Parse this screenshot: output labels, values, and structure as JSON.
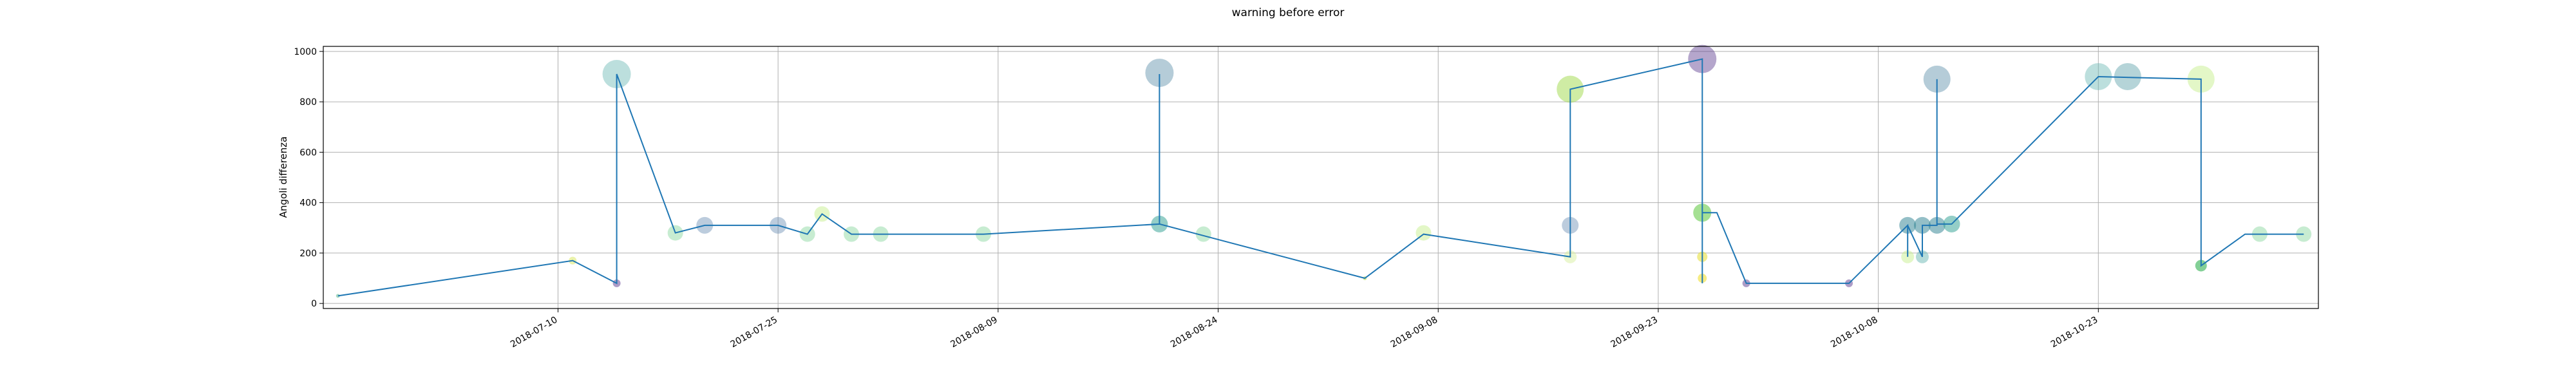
{
  "chart_data": {
    "type": "line",
    "title": "warning before error",
    "xlabel": "",
    "ylabel": "Angoli differenza",
    "ylim": [
      -20,
      1020
    ],
    "xlim": [
      "2018-06-24",
      "2018-11-07"
    ],
    "grid": true,
    "x_tick_labels": [
      "2018-07-10",
      "2018-07-25",
      "2018-08-09",
      "2018-08-24",
      "2018-09-08",
      "2018-09-23",
      "2018-10-08",
      "2018-10-23"
    ],
    "y_ticks": [
      0,
      200,
      400,
      600,
      800,
      1000
    ],
    "series": [
      {
        "x": [
          "2018-06-25",
          "2018-07-11",
          "2018-07-14",
          "2018-07-14",
          "2018-07-18",
          "2018-07-20",
          "2018-07-25",
          "2018-07-27",
          "2018-07-28",
          "2018-07-30",
          "2018-08-08",
          "2018-08-20",
          "2018-08-20",
          "2018-08-20",
          "2018-09-03",
          "2018-09-07",
          "2018-09-17",
          "2018-09-17",
          "2018-09-26",
          "2018-09-26",
          "2018-09-26",
          "2018-09-26",
          "2018-09-26",
          "2018-09-26",
          "2018-09-26",
          "2018-09-27",
          "2018-09-29",
          "2018-10-06",
          "2018-10-10",
          "2018-10-10",
          "2018-10-10",
          "2018-10-11",
          "2018-10-11",
          "2018-10-12",
          "2018-10-12",
          "2018-10-12",
          "2018-10-13",
          "2018-10-23",
          "2018-10-30",
          "2018-10-30",
          "2018-11-02",
          "2018-11-06"
        ],
        "y": [
          30,
          170,
          80,
          910,
          280,
          310,
          310,
          275,
          355,
          275,
          275,
          315,
          910,
          315,
          100,
          275,
          185,
          850,
          970,
          360,
          80,
          360,
          260,
          100,
          360,
          360,
          80,
          80,
          310,
          185,
          310,
          185,
          310,
          310,
          890,
          315,
          315,
          900,
          890,
          150,
          275,
          275
        ],
        "line_color": "#1f77b4"
      }
    ],
    "markers": [
      {
        "x": "2018-06-25",
        "y": 30,
        "size": 3,
        "color": "#6cbf9a",
        "alpha": 0.6
      },
      {
        "x": "2018-07-11",
        "y": 170,
        "size": 6,
        "color": "#d8e85a",
        "alpha": 0.5
      },
      {
        "x": "2018-07-14",
        "y": 80,
        "size": 6,
        "color": "#5b3a8f",
        "alpha": 0.5
      },
      {
        "x": "2018-07-14",
        "y": 910,
        "size": 22,
        "color": "#6ab7b4",
        "alpha": 0.45
      },
      {
        "x": "2018-07-18",
        "y": 280,
        "size": 12,
        "color": "#8fd9a4",
        "alpha": 0.5
      },
      {
        "x": "2018-07-20",
        "y": 310,
        "size": 13,
        "color": "#6a8fb4",
        "alpha": 0.45
      },
      {
        "x": "2018-07-25",
        "y": 310,
        "size": 13,
        "color": "#6a8fb4",
        "alpha": 0.45
      },
      {
        "x": "2018-07-27",
        "y": 275,
        "size": 12,
        "color": "#8fd9a4",
        "alpha": 0.5
      },
      {
        "x": "2018-07-28",
        "y": 355,
        "size": 12,
        "color": "#c8ef90",
        "alpha": 0.5
      },
      {
        "x": "2018-07-30",
        "y": 275,
        "size": 12,
        "color": "#8fd9a4",
        "alpha": 0.5
      },
      {
        "x": "2018-08-01",
        "y": 275,
        "size": 12,
        "color": "#8fd9a4",
        "alpha": 0.5
      },
      {
        "x": "2018-08-08",
        "y": 275,
        "size": 12,
        "color": "#8fd9a4",
        "alpha": 0.5
      },
      {
        "x": "2018-08-20",
        "y": 915,
        "size": 22,
        "color": "#5a8fa8",
        "alpha": 0.45
      },
      {
        "x": "2018-08-20",
        "y": 315,
        "size": 13,
        "color": "#2a9d8f",
        "alpha": 0.5
      },
      {
        "x": "2018-08-23",
        "y": 275,
        "size": 12,
        "color": "#8fd9a4",
        "alpha": 0.5
      },
      {
        "x": "2018-09-03",
        "y": 100,
        "size": 3,
        "color": "#c0e050",
        "alpha": 0.6
      },
      {
        "x": "2018-09-07",
        "y": 280,
        "size": 12,
        "color": "#c8ef90",
        "alpha": 0.5
      },
      {
        "x": "2018-09-17",
        "y": 310,
        "size": 13,
        "color": "#6a8fb4",
        "alpha": 0.45
      },
      {
        "x": "2018-09-17",
        "y": 185,
        "size": 10,
        "color": "#d8f0a0",
        "alpha": 0.5
      },
      {
        "x": "2018-09-17",
        "y": 850,
        "size": 21,
        "color": "#9fd94a",
        "alpha": 0.5
      },
      {
        "x": "2018-09-26",
        "y": 970,
        "size": 22,
        "color": "#5b3a8f",
        "alpha": 0.45
      },
      {
        "x": "2018-09-26",
        "y": 360,
        "size": 14,
        "color": "#30b050",
        "alpha": 0.6
      },
      {
        "x": "2018-09-26",
        "y": 360,
        "size": 14,
        "color": "#c8ef90",
        "alpha": 0.5
      },
      {
        "x": "2018-09-26",
        "y": 185,
        "size": 8,
        "color": "#e6e040",
        "alpha": 0.6
      },
      {
        "x": "2018-09-26",
        "y": 100,
        "size": 7,
        "color": "#f0e030",
        "alpha": 0.6
      },
      {
        "x": "2018-09-29",
        "y": 80,
        "size": 6,
        "color": "#5b3a8f",
        "alpha": 0.5
      },
      {
        "x": "2018-10-06",
        "y": 80,
        "size": 6,
        "color": "#5b3a8f",
        "alpha": 0.5
      },
      {
        "x": "2018-10-10",
        "y": 310,
        "size": 13,
        "color": "#2a7f8f",
        "alpha": 0.5
      },
      {
        "x": "2018-10-10",
        "y": 185,
        "size": 10,
        "color": "#c8ef90",
        "alpha": 0.5
      },
      {
        "x": "2018-10-11",
        "y": 310,
        "size": 13,
        "color": "#2a7f8f",
        "alpha": 0.5
      },
      {
        "x": "2018-10-11",
        "y": 185,
        "size": 10,
        "color": "#6ab7b4",
        "alpha": 0.5
      },
      {
        "x": "2018-10-12",
        "y": 310,
        "size": 13,
        "color": "#2a7f8f",
        "alpha": 0.5
      },
      {
        "x": "2018-10-12",
        "y": 890,
        "size": 21,
        "color": "#5a8fa8",
        "alpha": 0.45
      },
      {
        "x": "2018-10-13",
        "y": 315,
        "size": 13,
        "color": "#2a9d8f",
        "alpha": 0.5
      },
      {
        "x": "2018-10-23",
        "y": 900,
        "size": 21,
        "color": "#6ab7b4",
        "alpha": 0.45
      },
      {
        "x": "2018-10-25",
        "y": 900,
        "size": 21,
        "color": "#5a9fa8",
        "alpha": 0.45
      },
      {
        "x": "2018-10-30",
        "y": 890,
        "size": 21,
        "color": "#c8ef90",
        "alpha": 0.5
      },
      {
        "x": "2018-10-30",
        "y": 150,
        "size": 9,
        "color": "#30b050",
        "alpha": 0.6
      },
      {
        "x": "2018-11-03",
        "y": 275,
        "size": 12,
        "color": "#8fd9a4",
        "alpha": 0.5
      },
      {
        "x": "2018-11-06",
        "y": 275,
        "size": 12,
        "color": "#8fd9a4",
        "alpha": 0.5
      }
    ]
  }
}
